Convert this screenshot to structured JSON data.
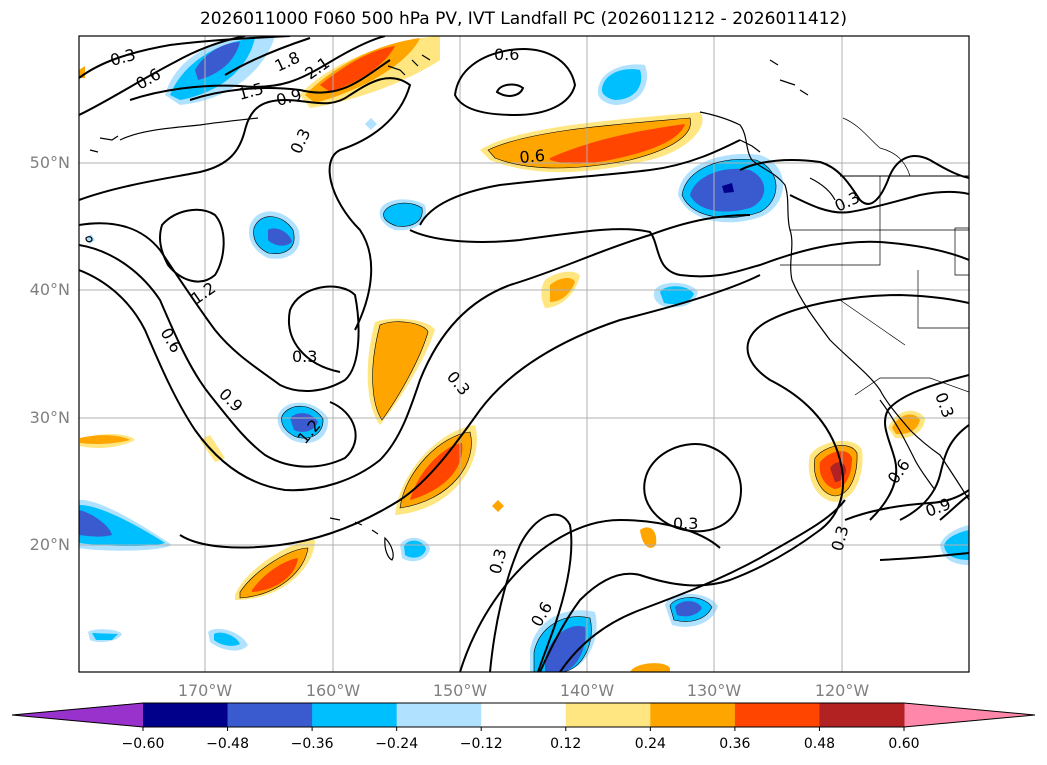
{
  "title": "2026011000 F060 500 hPa PV, IVT Landfall PC (2026011212 - 2026011412)",
  "latitude_labels": [
    "50°N",
    "40°N",
    "30°N",
    "20°N"
  ],
  "longitude_labels": [
    "170°W",
    "160°W",
    "150°W",
    "140°W",
    "130°W",
    "120°W"
  ],
  "colorbar": {
    "tick_labels": [
      "−0.60",
      "−0.48",
      "−0.36",
      "−0.24",
      "−0.12",
      "0.12",
      "0.24",
      "0.36",
      "0.48",
      "0.60"
    ],
    "colors": [
      "#9932cc",
      "#00008b",
      "#3a5bcf",
      "#00bfff",
      "#b0e2ff",
      "#ffffff",
      "#ffe680",
      "#ffa500",
      "#ff4500",
      "#b22222",
      "#ff88aa"
    ]
  },
  "contour_labels": [
    "0.3",
    "0.6",
    "1.5",
    "1.8",
    "2.1",
    "0.9",
    "0.3",
    "0.6",
    "0.6",
    "0.3",
    "1.2",
    "0.6",
    "0.9",
    "0.3",
    "1.2",
    "0.3",
    "0.3",
    "0.6",
    "0.3",
    "0.3",
    "0.6",
    "0.9",
    "0.3"
  ]
}
